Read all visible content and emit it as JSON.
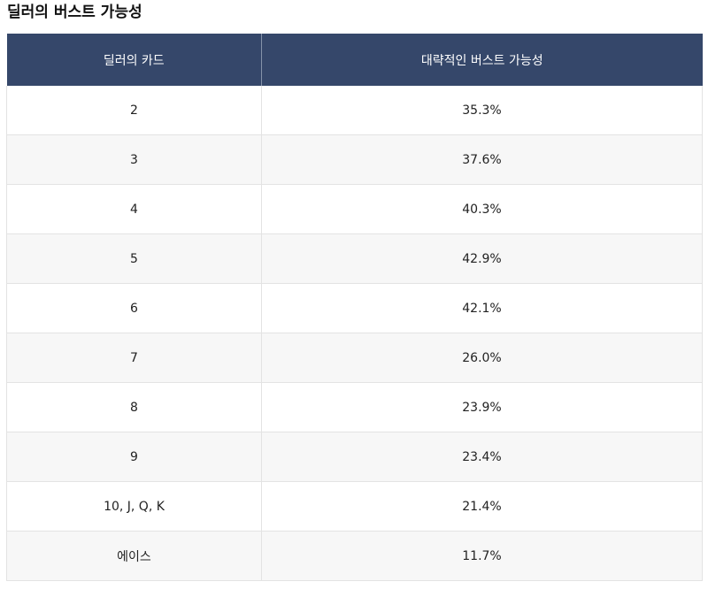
{
  "title": "딜러의 버스트 가능성",
  "table": {
    "headers": [
      "딜러의 카드",
      "대략적인 버스트 가능성"
    ],
    "rows": [
      {
        "card": "2",
        "probability": "35.3%"
      },
      {
        "card": "3",
        "probability": "37.6%"
      },
      {
        "card": "4",
        "probability": "40.3%"
      },
      {
        "card": "5",
        "probability": "42.9%"
      },
      {
        "card": "6",
        "probability": "42.1%"
      },
      {
        "card": "7",
        "probability": "26.0%"
      },
      {
        "card": "8",
        "probability": "23.9%"
      },
      {
        "card": "9",
        "probability": "23.4%"
      },
      {
        "card": "10, J, Q, K",
        "probability": "21.4%"
      },
      {
        "card": "에이스",
        "probability": "11.7%"
      }
    ]
  },
  "colors": {
    "header_bg": "#35476a",
    "header_text": "#ffffff",
    "row_alt_bg": "#f7f7f7",
    "border": "#e3e3e3"
  }
}
